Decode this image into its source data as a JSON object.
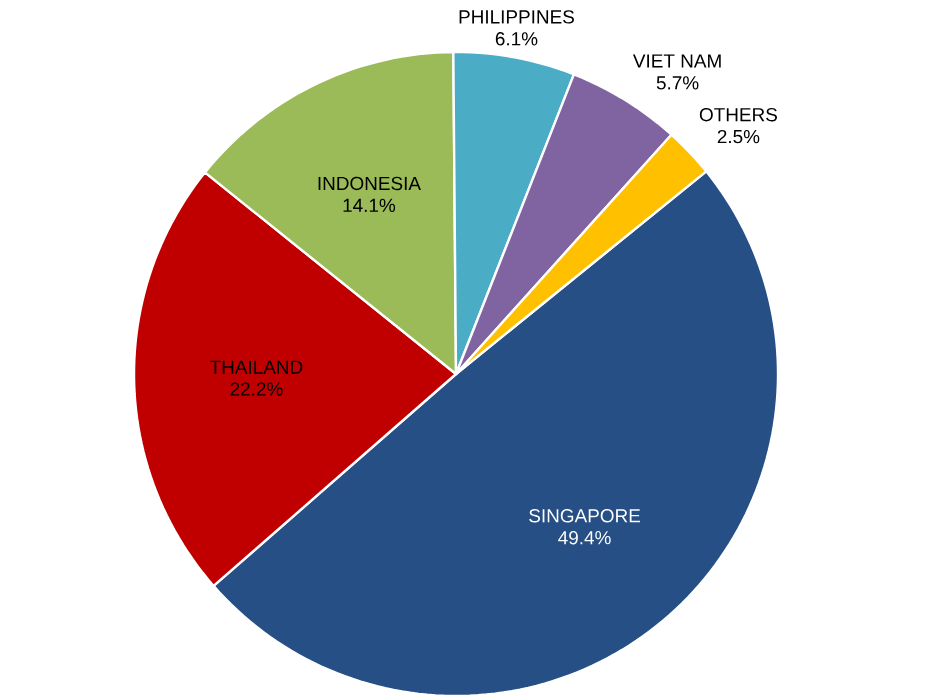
{
  "chart_data": {
    "type": "pie",
    "categories": [
      "SINGAPORE",
      "THAILAND",
      "INDONESIA",
      "PHILIPPINES",
      "VIET NAM",
      "OTHERS"
    ],
    "values": [
      49.4,
      22.2,
      14.1,
      6.1,
      5.7,
      2.5
    ],
    "value_labels": [
      "49.4%",
      "22.2%",
      "14.1%",
      "6.1%",
      "5.7%",
      "2.5%"
    ],
    "colors": [
      "#264f85",
      "#c00000",
      "#9bbb59",
      "#4bacc6",
      "#8064a2",
      "#ffc000"
    ]
  }
}
